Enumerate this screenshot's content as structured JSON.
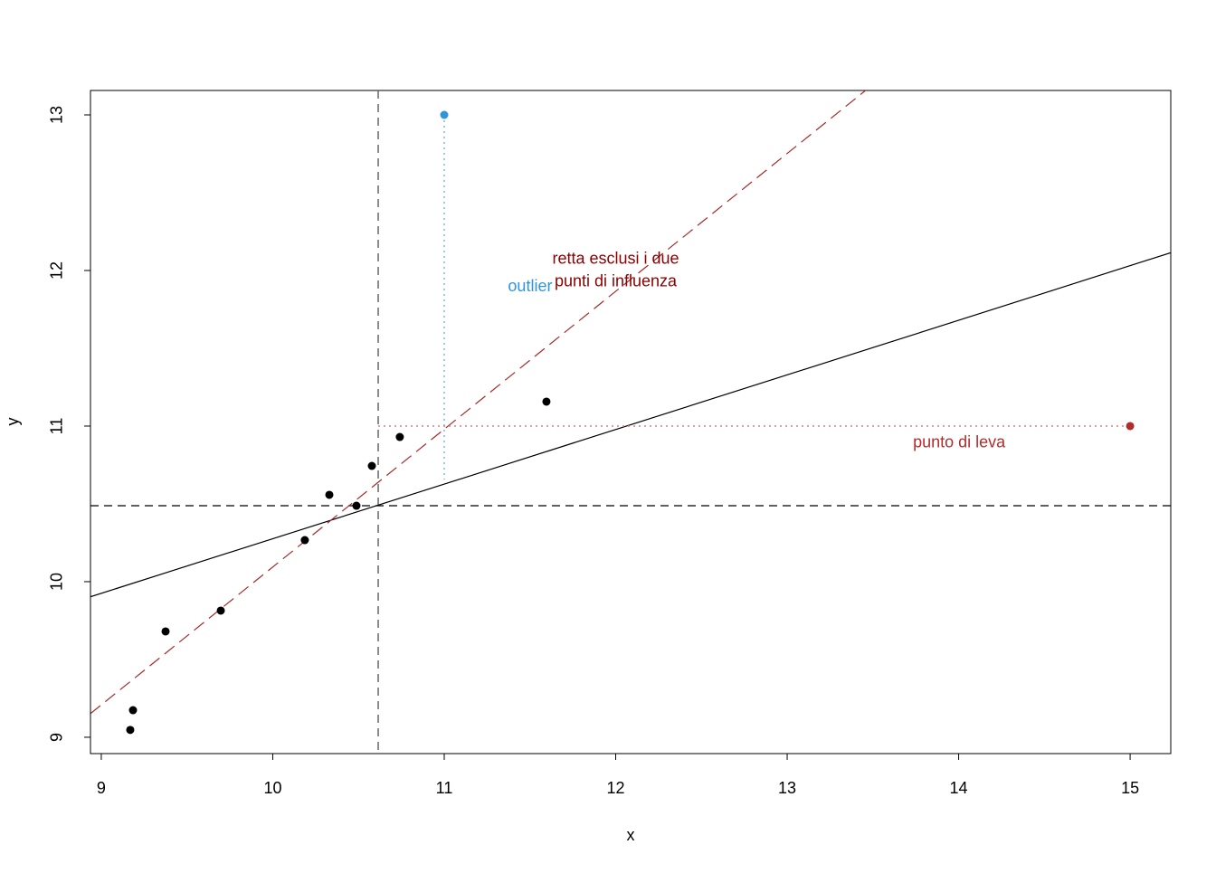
{
  "chart_data": {
    "type": "scatter",
    "x_label": "x",
    "y_label": "y",
    "xlim": [
      8.937,
      15.237
    ],
    "ylim": [
      8.895,
      13.157
    ],
    "xticks": [
      9,
      10,
      11,
      12,
      13,
      14,
      15
    ],
    "yticks": [
      9,
      10,
      11,
      12,
      13
    ],
    "points": {
      "color": "#000000",
      "x": [
        9.169,
        9.185,
        9.375,
        9.697,
        10.187,
        10.33,
        10.488,
        10.578,
        10.741,
        11.596
      ],
      "y": [
        9.047,
        9.174,
        9.68,
        9.814,
        10.267,
        10.558,
        10.488,
        10.744,
        10.93,
        11.157
      ]
    },
    "outlier_point": {
      "x": 11,
      "y": 13,
      "color": "#2f95dc"
    },
    "leverage_point": {
      "x": 15,
      "y": 11,
      "color": "#b22c2c"
    },
    "lines": [
      {
        "intercept": 6.766,
        "slope": 0.351,
        "color": "#000000",
        "dash": "solid"
      },
      {
        "intercept": 1.234,
        "slope": 0.886,
        "color": "#a52a2a",
        "dash": "dashed"
      }
    ],
    "vline": {
      "x": 10.615,
      "color": "#666666",
      "dash": "dashed"
    },
    "hline": {
      "y": 10.488,
      "color": "#000000",
      "dash": "dashed"
    },
    "segments": [
      {
        "x0": 11,
        "y0": 13,
        "x1": 11,
        "y1": 10.657,
        "color": "#7fb8ea",
        "dash": "dotted"
      },
      {
        "x0": 10.615,
        "y0": 11,
        "x1": 15,
        "y1": 11,
        "color": "#d08080",
        "dash": "dotted"
      }
    ],
    "annotations": [
      {
        "text": "outlier",
        "x": 11.501,
        "y": 11.895,
        "color": "#2f95dc"
      },
      {
        "text": "retta esclusi i due",
        "x": 12.0,
        "y": 12.07,
        "color": "#8b0000"
      },
      {
        "text": "punti di influenza",
        "x": 12.0,
        "y": 11.925,
        "color": "#8b0000"
      },
      {
        "text": "punto di leva",
        "x": 14.003,
        "y": 10.89,
        "color": "#b22c2c"
      }
    ]
  }
}
